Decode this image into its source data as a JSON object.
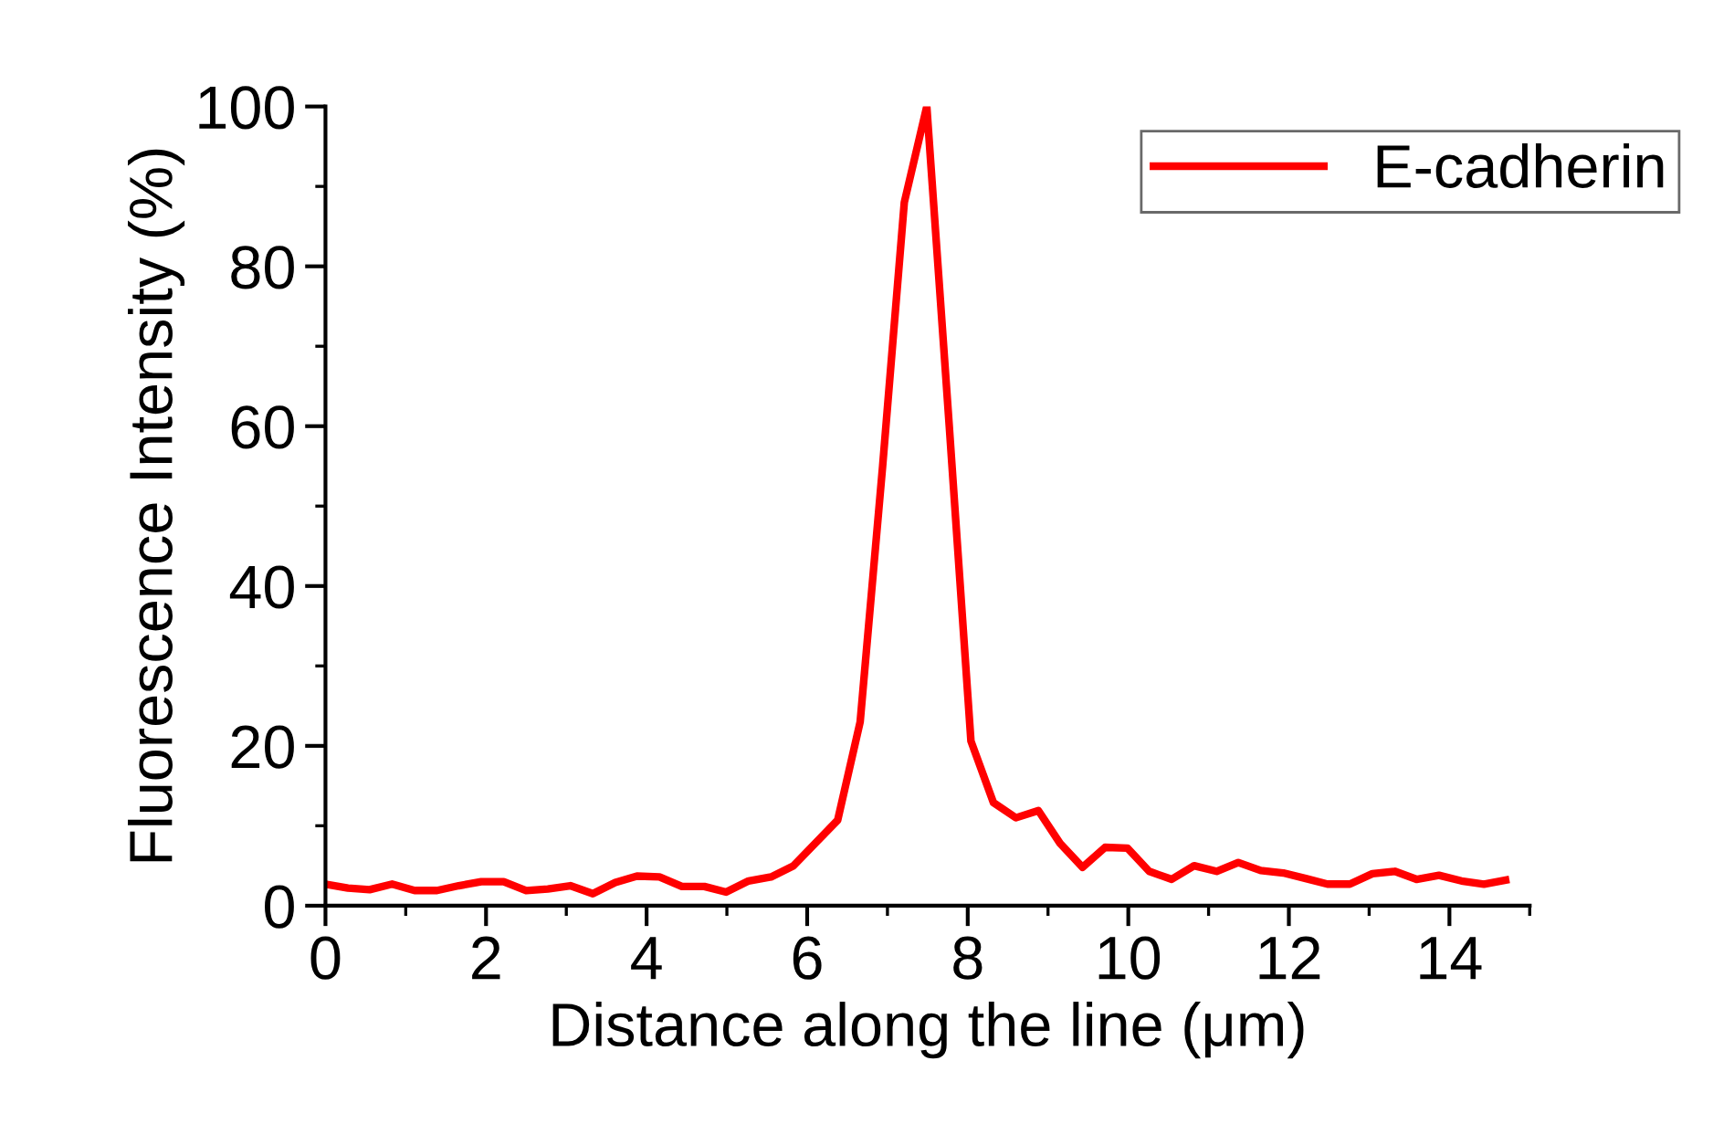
{
  "chart_data": {
    "type": "line",
    "xlabel": "Distance along the line (μm)",
    "ylabel": "Fluorescence Intensity (%)",
    "x": [
      0,
      0.28,
      0.55,
      0.83,
      1.11,
      1.39,
      1.66,
      1.94,
      2.22,
      2.5,
      2.77,
      3.05,
      3.33,
      3.61,
      3.88,
      4.16,
      4.44,
      4.72,
      4.99,
      5.27,
      5.55,
      5.83,
      6.1,
      6.38,
      6.66,
      6.94,
      7.21,
      7.49,
      7.77,
      8.04,
      8.32,
      8.6,
      8.88,
      9.15,
      9.43,
      9.71,
      9.99,
      10.26,
      10.54,
      10.82,
      11.1,
      11.37,
      11.65,
      11.93,
      12.21,
      12.48,
      12.76,
      13.04,
      13.32,
      13.59,
      13.87,
      14.15,
      14.43,
      14.7
    ],
    "series": [
      {
        "name": "E-cadherin",
        "color": "#ff0000",
        "values": [
          2.7,
          2.2,
          2.0,
          2.7,
          1.9,
          1.9,
          2.5,
          3.0,
          3.0,
          1.9,
          2.1,
          2.5,
          1.5,
          2.9,
          3.7,
          3.6,
          2.4,
          2.4,
          1.7,
          3.1,
          3.6,
          5.0,
          7.8,
          10.7,
          23,
          55,
          88,
          100,
          60,
          20.6,
          12.9,
          11.0,
          11.9,
          7.8,
          4.8,
          7.3,
          7.2,
          4.3,
          3.3,
          5.0,
          4.3,
          5.4,
          4.4,
          4.1,
          3.4,
          2.7,
          2.7,
          4.0,
          4.3,
          3.3,
          3.8,
          3.1,
          2.7,
          3.2
        ]
      }
    ],
    "xlim": [
      0,
      15
    ],
    "xticks": [
      0,
      2,
      4,
      6,
      8,
      10,
      12,
      14
    ],
    "ylim": [
      0,
      100
    ],
    "yticks": [
      0,
      20,
      40,
      60,
      80,
      100
    ],
    "grid": false,
    "legend": "top right",
    "marker": "none",
    "line_style": "solid"
  }
}
